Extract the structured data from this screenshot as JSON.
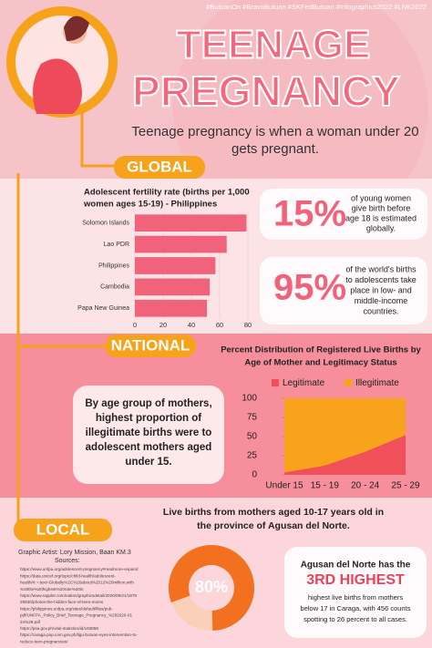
{
  "header": {
    "hashtags": "#ButuanOn #BravoButuan #SKFedButuan #Infographics2022 #LNK2022",
    "title_line1": "TEENAGE",
    "title_line2": "PREGNANCY",
    "subtitle": [
      "Teenage pregnancy is when a woman under 20",
      "gets pregnant."
    ]
  },
  "global": {
    "label": "GLOBAL",
    "bar_chart": {
      "type": "bar",
      "title": [
        "Adolescent fertility rate (births per 1,000",
        "women ages 15-19) - Philippines"
      ],
      "categories": [
        "Solomon Islands",
        "Lao PDR",
        "Philippines",
        "Cambodia",
        "Papa New Guinea"
      ],
      "values": [
        79,
        65,
        57,
        53,
        51
      ],
      "color": "#f0637a",
      "xlim": [
        0,
        80
      ],
      "xticks": [
        0,
        20,
        40,
        60,
        80
      ]
    },
    "stat1": {
      "value": "15%",
      "text": [
        "of young women",
        "give birth before",
        "age 18 is estimated",
        "globally."
      ]
    },
    "stat2": {
      "value": "95%",
      "text": [
        "of the world's births",
        "to adolescents take",
        "place in low- and",
        "middle-income",
        "countries."
      ]
    }
  },
  "national": {
    "label": "NATIONAL",
    "area_chart": {
      "type": "area",
      "stacked": true,
      "title": [
        "Percent Distribution of Registered Live Births by",
        "Age of Mother and Legitimacy Status"
      ],
      "categories": [
        "Under 15",
        "15 - 19",
        "20 - 24",
        "25 - 29"
      ],
      "series": [
        {
          "name": "Legitimate",
          "color": "#f0505a",
          "values": [
            3,
            12,
            30,
            52
          ]
        },
        {
          "name": "Illegitimate",
          "color": "#f9a21b",
          "values": [
            97,
            88,
            70,
            48
          ]
        }
      ],
      "ylim": [
        0,
        100
      ],
      "yticks": [
        0,
        25,
        50,
        75,
        100
      ]
    },
    "note": [
      "By age group of mothers,",
      "highest proportion of",
      "illegitimate births were to",
      "adolescent mothers aged",
      "under 15."
    ]
  },
  "local": {
    "label": "LOCAL",
    "heading": [
      "Live births from mothers aged 10-17 years old in",
      "the province of Agusan del Norte."
    ],
    "credit": "Graphic Artist: Lory Mission, Baan KM.3",
    "sources_label": "Sources:",
    "sources": [
      "https://www.unfpa.org/adolescent-pregnancy#readmore-expand",
      "https://data.unicef.org/topic/child-health/adolescent-",
      "health/#:~:text=Globally%2C%20about%2012%20million,with",
      "%20the%20highest%20rate%20in",
      "https://www.rappler.com/nation/graphicsdetail/2020/09/21/1879",
      "29830/photos-the-hidden-face-of-teen-moms",
      "https://philippines.unfpa.org/sites/default/files/pub-",
      "pdf/UNFPA_Policy_Brief_Teenage_Pregnancy_%282020-01",
      "24%29.pdf",
      "https://psa.gov.ph/vital-statistics/id/163858",
      "https://caraga.pop.com.gov.ph/ligu-butuan-eyes-intervention-to-",
      "reduce-teen-pregnancies/"
    ],
    "donut": {
      "type": "donut",
      "value": 80,
      "value_label": "80%",
      "color": "#f37021",
      "track_color": "#fbd0b8"
    },
    "callout": {
      "intro": "Agusan del Norte has the",
      "highlight": "3RD HIGHEST",
      "text": [
        "highest live births from mothers",
        "below 17 in Caraga, with 456 counts",
        "spotting to 26 percent to all cases."
      ]
    }
  }
}
